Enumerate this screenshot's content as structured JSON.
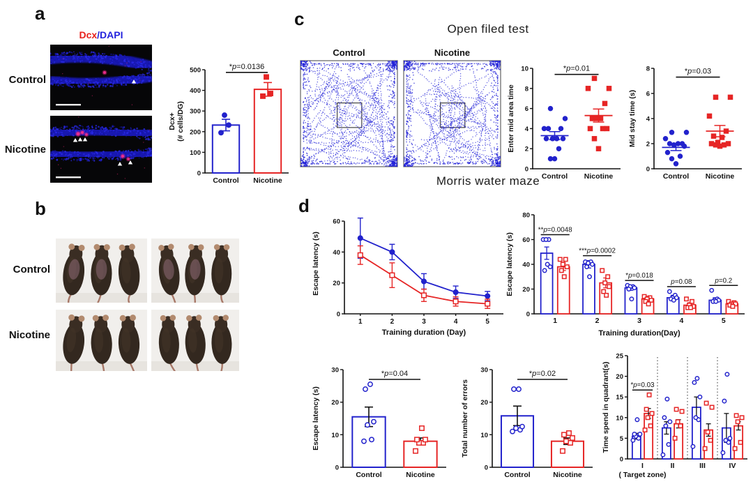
{
  "figure": {
    "panels": {
      "a": "a",
      "b": "b",
      "c": "c",
      "d": "d"
    },
    "colors": {
      "control": "#2222cc",
      "nicotine": "#e62525",
      "axis": "#111111",
      "traj": "#2424d8",
      "dcx_red": "#e8211c",
      "dapi_blue": "#2424dd"
    }
  },
  "panel_a": {
    "image_title_dcx": "Dcx",
    "image_title_dapi": "/DAPI",
    "rows": [
      {
        "label": "Control"
      },
      {
        "label": "Nicotine"
      }
    ]
  },
  "panel_b": {
    "rows": [
      {
        "label": "Control"
      },
      {
        "label": "Nicotine"
      }
    ]
  },
  "panel_c": {
    "title": "Open filed test",
    "trajectories": [
      {
        "label": "Control"
      },
      {
        "label": "Nicotine"
      }
    ]
  },
  "panel_d": {
    "title": "Morris water maze"
  },
  "chart_data": [
    {
      "id": "dcx_bar",
      "type": "bar",
      "ylabel_lines": [
        "Dcx+",
        "(# cells/DG)"
      ],
      "ylim": [
        0,
        500
      ],
      "yticks": [
        0,
        100,
        200,
        300,
        400,
        500
      ],
      "groups": [
        {
          "label": "Control",
          "color": "control",
          "marker": "circle",
          "filled": true,
          "bar": 232,
          "err": 28,
          "points": [
            195,
            232,
            280
          ]
        },
        {
          "label": "Nicotine",
          "color": "nicotine",
          "marker": "square",
          "filled": true,
          "bar": 405,
          "err": 33,
          "points": [
            372,
            385,
            465
          ]
        }
      ],
      "annotation": {
        "text": "*p=0.0136",
        "y": 487
      }
    },
    {
      "id": "enter_mid",
      "type": "scatter",
      "ylabel_lines": [
        "Enter mid area time"
      ],
      "ylim": [
        0,
        10
      ],
      "yticks": [
        0,
        2,
        4,
        6,
        8,
        10
      ],
      "groups": [
        {
          "label": "Control",
          "color": "control",
          "marker": "circle",
          "filled": true,
          "mean": 3.3,
          "err": 0.4,
          "points": [
            1,
            1,
            2,
            3,
            3,
            3,
            3,
            4,
            4,
            4,
            5,
            6
          ]
        },
        {
          "label": "Nicotine",
          "color": "nicotine",
          "marker": "square",
          "filled": true,
          "mean": 5.3,
          "err": 0.65,
          "points": [
            2,
            3,
            4,
            4,
            4,
            5,
            5,
            5,
            6.5,
            8,
            8,
            9
          ]
        }
      ],
      "annotation": {
        "text": "*p=0.01",
        "y": 9.4
      }
    },
    {
      "id": "mid_stay",
      "type": "scatter",
      "ylabel_lines": [
        "Mid stay time (s)"
      ],
      "ylim": [
        0,
        8
      ],
      "yticks": [
        0,
        2,
        4,
        6,
        8
      ],
      "groups": [
        {
          "label": "Control",
          "color": "control",
          "marker": "circle",
          "filled": true,
          "mean": 1.7,
          "err": 0.25,
          "points": [
            0.4,
            0.8,
            1,
            1.3,
            1.8,
            1.9,
            2,
            2,
            2,
            2.4,
            2.9,
            2.9
          ]
        },
        {
          "label": "Nicotine",
          "color": "nicotine",
          "marker": "square",
          "filled": true,
          "mean": 3.0,
          "err": 0.45,
          "points": [
            1.8,
            1.9,
            1.9,
            2,
            2,
            2.1,
            2.5,
            2.6,
            3,
            4.2,
            5.7,
            5.7
          ]
        }
      ],
      "annotation": {
        "text": "*p=0.03",
        "y": 7.3
      }
    },
    {
      "id": "mwm_line",
      "type": "line",
      "ylabel_lines": [
        "Escape latency (s)"
      ],
      "xlabel": "Training duration (Day)",
      "x": [
        "1",
        "2",
        "3",
        "4",
        "5"
      ],
      "ylim": [
        0,
        65
      ],
      "yticks": [
        0,
        20,
        40,
        60
      ],
      "series": [
        {
          "name": "Control",
          "color": "control",
          "marker": "circle",
          "filled": true,
          "values": [
            49,
            40,
            21,
            14,
            11.5
          ],
          "err": [
            13,
            5,
            5,
            4,
            3
          ]
        },
        {
          "name": "Nicotine",
          "color": "nicotine",
          "marker": "square",
          "filled": false,
          "values": [
            38,
            25,
            12,
            8,
            6.5
          ],
          "err": [
            6,
            8,
            4,
            3,
            3
          ]
        }
      ]
    },
    {
      "id": "mwm_day_bars",
      "type": "groupedbar",
      "ylabel_lines": [
        "Escape latency (s)"
      ],
      "xlabel": "Training duration(Day)",
      "categories": [
        "1",
        "2",
        "3",
        "4",
        "5"
      ],
      "ylim": [
        0,
        80
      ],
      "yticks": [
        0,
        20,
        40,
        60,
        80
      ],
      "series": [
        {
          "name": "Control",
          "color": "control",
          "marker": "circle",
          "bars": [
            49,
            40,
            21,
            13,
            11
          ],
          "err": [
            5,
            3,
            2,
            2,
            2
          ],
          "points": [
            [
              60,
              60,
              60,
              38,
              35,
              40
            ],
            [
              42,
              42,
              41,
              40,
              38,
              30
            ],
            [
              23,
              22,
              22,
              21,
              20,
              12
            ],
            [
              18,
              15,
              13,
              13,
              12,
              11
            ],
            [
              19,
              12,
              11,
              11,
              10,
              10
            ]
          ]
        },
        {
          "name": "Nicotine",
          "color": "nicotine",
          "marker": "square",
          "bars": [
            38,
            25,
            12,
            7,
            8
          ],
          "err": [
            3,
            4,
            2,
            2,
            1.5
          ],
          "points": [
            [
              44,
              44,
              40,
              38,
              35,
              30
            ],
            [
              35,
              30,
              25,
              22,
              18,
              15
            ],
            [
              14,
              13,
              12,
              11,
              10,
              8
            ],
            [
              12,
              10,
              7,
              6,
              5,
              5
            ],
            [
              10,
              9,
              8,
              8,
              7,
              6
            ]
          ]
        }
      ],
      "annotations": [
        "**p=0.0048",
        "***p=0.0002",
        "*p=0.018",
        "p=0.08",
        "p=0.2"
      ],
      "err_series_color": true
    },
    {
      "id": "probe_latency",
      "type": "bar",
      "ylabel_lines": [
        "Escape latency (s)"
      ],
      "ylim": [
        0,
        30
      ],
      "yticks": [
        0,
        10,
        20,
        30
      ],
      "groups": [
        {
          "label": "Control",
          "color": "control",
          "marker": "circle",
          "filled": false,
          "bar": 15.5,
          "err": 3,
          "points": [
            8,
            8.5,
            13,
            14,
            24,
            25.5
          ]
        },
        {
          "label": "Nicotine",
          "color": "nicotine",
          "marker": "square",
          "filled": false,
          "bar": 8,
          "err": 1,
          "points": [
            5,
            7.5,
            7.5,
            8.5,
            8.5,
            12
          ]
        }
      ],
      "annotation": {
        "text": "*p=0.04",
        "y": 27
      }
    },
    {
      "id": "total_errors",
      "type": "bar",
      "ylabel_lines": [
        "Total number of errors"
      ],
      "ylim": [
        0,
        30
      ],
      "yticks": [
        0,
        10,
        20,
        30
      ],
      "groups": [
        {
          "label": "Control",
          "color": "control",
          "marker": "circle",
          "filled": false,
          "bar": 15.8,
          "err": 3,
          "points": [
            11,
            11.5,
            12,
            12.5,
            24,
            24
          ]
        },
        {
          "label": "Nicotine",
          "color": "nicotine",
          "marker": "square",
          "filled": false,
          "bar": 8,
          "err": 1,
          "points": [
            5,
            7.5,
            8,
            9,
            10,
            10.5
          ]
        }
      ],
      "annotation": {
        "text": "*p=0.02",
        "y": 27
      }
    },
    {
      "id": "quadrant",
      "type": "groupedbar",
      "ylabel_lines": [
        "Time spend in quadrant(s)"
      ],
      "categories": [
        "I",
        "II",
        "III",
        "IV"
      ],
      "xnote": "( Target zone)",
      "ylim": [
        0,
        25
      ],
      "yticks": [
        0,
        5,
        10,
        15,
        20,
        25
      ],
      "separators": true,
      "series": [
        {
          "name": "Control",
          "color": "control",
          "marker": "circle",
          "bars": [
            5.5,
            7.5,
            12.5,
            7.5
          ],
          "err": [
            0.7,
            1.5,
            2.5,
            3.5
          ],
          "points": [
            [
              4.5,
              5,
              5.5,
              6,
              6,
              9.5
            ],
            [
              1,
              3.5,
              8,
              9,
              10,
              14.5
            ],
            [
              3,
              9.5,
              10,
              15,
              18.5,
              19.5
            ],
            [
              1.5,
              4,
              4.5,
              5,
              14,
              20.5
            ]
          ]
        },
        {
          "name": "Nicotine",
          "color": "nicotine",
          "marker": "square",
          "bars": [
            11,
            8.5,
            7,
            8
          ],
          "err": [
            1.2,
            1,
            1.5,
            1
          ],
          "points": [
            [
              7,
              8,
              10,
              11,
              12,
              15.5
            ],
            [
              5,
              8,
              9,
              11.5,
              12
            ],
            [
              2.5,
              4.5,
              6.5,
              12.5,
              13.5
            ],
            [
              2.5,
              4,
              9,
              10,
              10.5
            ]
          ]
        }
      ],
      "annotations": [
        "*p=0.03",
        "",
        "",
        ""
      ]
    }
  ]
}
